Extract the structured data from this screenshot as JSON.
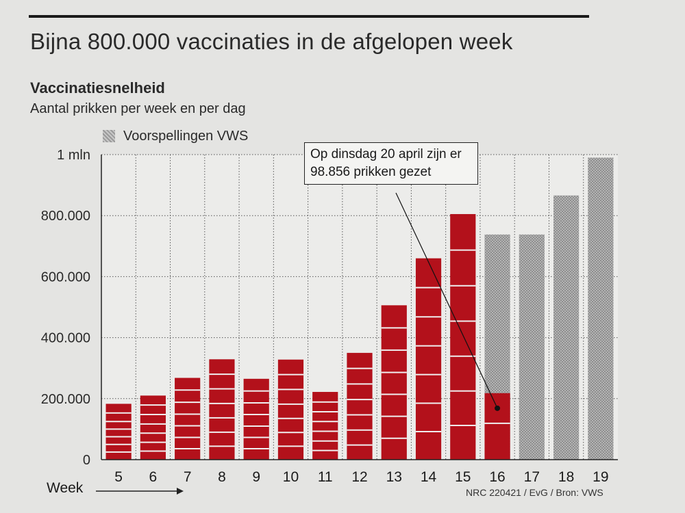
{
  "headline": "Bijna 800.000 vaccinaties in de afgelopen week",
  "subtitle_bold": "Vaccinatiesnelheid",
  "subtitle": "Aantal prikken per week en per dag",
  "legend_label": "Voorspellingen VWS",
  "callout_text": "Op dinsdag 20 april zijn er 98.856 prikken gezet",
  "credit": "NRC 220421 / EvG / Bron: VWS",
  "colors": {
    "actual": "#b3111b",
    "forecast": "#a9a9a9",
    "background": "#e4e4e2"
  },
  "chart_data": {
    "type": "bar",
    "xlabel": "Week",
    "ylabel": "",
    "ylim": [
      0,
      1000000
    ],
    "yticks": [
      0,
      200000,
      400000,
      600000,
      800000,
      1000000
    ],
    "ytick_labels": [
      "0",
      "200.000",
      "400.000",
      "600.000",
      "800.000",
      "1 mln"
    ],
    "grid": true,
    "categories": [
      "5",
      "6",
      "7",
      "8",
      "9",
      "10",
      "11",
      "12",
      "13",
      "14",
      "15",
      "16",
      "17",
      "18",
      "19"
    ],
    "series": [
      {
        "name": "",
        "values": [
          183000,
          210000,
          268000,
          329000,
          265000,
          328000,
          222000,
          350000,
          506000,
          660000,
          805000,
          218000,
          null,
          null,
          null
        ]
      },
      {
        "name": "Voorspellingen VWS",
        "values": [
          null,
          null,
          null,
          null,
          null,
          null,
          null,
          null,
          null,
          null,
          null,
          738000,
          738000,
          866000,
          990000
        ]
      }
    ],
    "daily_values": [
      [
        25000,
        25000,
        25000,
        25000,
        25000,
        28000,
        30000
      ],
      [
        28000,
        29000,
        30000,
        30000,
        31000,
        31000,
        31000
      ],
      [
        36000,
        37000,
        38000,
        38000,
        39000,
        40000,
        40000
      ],
      [
        44000,
        46000,
        47000,
        47000,
        48000,
        48000,
        49000
      ],
      [
        36000,
        37000,
        37000,
        38000,
        38000,
        39000,
        40000
      ],
      [
        44000,
        45000,
        46000,
        47000,
        48000,
        49000,
        49000
      ],
      [
        30000,
        31000,
        32000,
        32000,
        32000,
        32000,
        33000
      ],
      [
        48000,
        49000,
        50000,
        50000,
        51000,
        51000,
        51000
      ],
      [
        70000,
        72000,
        72000,
        72000,
        73000,
        73000,
        74000
      ],
      [
        92000,
        93000,
        94000,
        94000,
        95000,
        96000,
        96000
      ],
      [
        112000,
        113000,
        114000,
        115000,
        116000,
        117000,
        118000
      ],
      [
        119144,
        98856
      ]
    ],
    "annotation": {
      "text": "Op dinsdag 20 april zijn er 98.856 prikken gezet",
      "category": "16",
      "value": 98856
    }
  }
}
